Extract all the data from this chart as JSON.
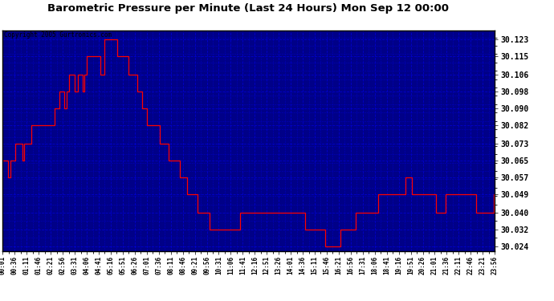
{
  "title": "Barometric Pressure per Minute (Last 24 Hours) Mon Sep 12 00:00",
  "copyright": "Copyright 2005 Gurtronics.com",
  "bg_color": "#000088",
  "line_color": "#ff0000",
  "grid_color": "#0000cc",
  "outer_bg": "#ffffff",
  "y_ticks": [
    30.024,
    30.032,
    30.04,
    30.049,
    30.057,
    30.065,
    30.073,
    30.082,
    30.09,
    30.098,
    30.106,
    30.115,
    30.123
  ],
  "y_min": 30.0215,
  "y_max": 30.1275,
  "x_labels": [
    "00:01",
    "00:36",
    "01:11",
    "01:46",
    "02:21",
    "02:56",
    "03:31",
    "04:06",
    "04:41",
    "05:16",
    "05:51",
    "06:26",
    "07:01",
    "07:36",
    "08:11",
    "08:46",
    "09:21",
    "09:56",
    "10:31",
    "11:06",
    "11:41",
    "12:16",
    "12:51",
    "13:26",
    "14:01",
    "14:36",
    "15:11",
    "15:46",
    "16:21",
    "16:56",
    "17:31",
    "18:06",
    "18:41",
    "19:16",
    "19:51",
    "20:26",
    "21:01",
    "21:36",
    "22:11",
    "22:46",
    "23:21",
    "23:56"
  ],
  "pressure_data": [
    30.065,
    30.065,
    30.065,
    30.065,
    30.057,
    30.057,
    30.065,
    30.065,
    30.065,
    30.065,
    30.073,
    30.073,
    30.073,
    30.073,
    30.073,
    30.073,
    30.065,
    30.073,
    30.073,
    30.073,
    30.073,
    30.073,
    30.073,
    30.082,
    30.082,
    30.082,
    30.082,
    30.082,
    30.082,
    30.082,
    30.082,
    30.082,
    30.082,
    30.082,
    30.082,
    30.082,
    30.082,
    30.082,
    30.082,
    30.082,
    30.082,
    30.09,
    30.09,
    30.09,
    30.09,
    30.098,
    30.098,
    30.098,
    30.098,
    30.09,
    30.09,
    30.098,
    30.098,
    30.106,
    30.106,
    30.106,
    30.106,
    30.098,
    30.098,
    30.098,
    30.106,
    30.106,
    30.106,
    30.106,
    30.098,
    30.106,
    30.106,
    30.115,
    30.115,
    30.115,
    30.115,
    30.115,
    30.115,
    30.115,
    30.115,
    30.115,
    30.115,
    30.115,
    30.106,
    30.106,
    30.106,
    30.123,
    30.123,
    30.123,
    30.123,
    30.123,
    30.123,
    30.123,
    30.123,
    30.123,
    30.123,
    30.115,
    30.115,
    30.115,
    30.115,
    30.115,
    30.115,
    30.115,
    30.115,
    30.115,
    30.106,
    30.106,
    30.106,
    30.106,
    30.106,
    30.106,
    30.106,
    30.098,
    30.098,
    30.098,
    30.098,
    30.09,
    30.09,
    30.09,
    30.09,
    30.082,
    30.082,
    30.082,
    30.082,
    30.082,
    30.082,
    30.082,
    30.082,
    30.082,
    30.082,
    30.073,
    30.073,
    30.073,
    30.073,
    30.073,
    30.073,
    30.073,
    30.065,
    30.065,
    30.065,
    30.065,
    30.065,
    30.065,
    30.065,
    30.065,
    30.065,
    30.057,
    30.057,
    30.057,
    30.057,
    30.057,
    30.057,
    30.049,
    30.049,
    30.049,
    30.049,
    30.049,
    30.049,
    30.049,
    30.049,
    30.04,
    30.04,
    30.04,
    30.04,
    30.04,
    30.04,
    30.04,
    30.04,
    30.04,
    30.04,
    30.032,
    30.032,
    30.032,
    30.032,
    30.032,
    30.032,
    30.032,
    30.032,
    30.032,
    30.032,
    30.032,
    30.032,
    30.032,
    30.032,
    30.032,
    30.032,
    30.032,
    30.032,
    30.032,
    30.032,
    30.032,
    30.032,
    30.032,
    30.032,
    30.04,
    30.04,
    30.04,
    30.04,
    30.04,
    30.04,
    30.04,
    30.04,
    30.04,
    30.04,
    30.04,
    30.04,
    30.04,
    30.04,
    30.04,
    30.04,
    30.04,
    30.04,
    30.04,
    30.04,
    30.04,
    30.04,
    30.04,
    30.04,
    30.04,
    30.04,
    30.04,
    30.04,
    30.04,
    30.04,
    30.04,
    30.04,
    30.04,
    30.04,
    30.04,
    30.04,
    30.04,
    30.04,
    30.04,
    30.04,
    30.04,
    30.04,
    30.04,
    30.04,
    30.04,
    30.04,
    30.04,
    30.04,
    30.04,
    30.04,
    30.04,
    30.04,
    30.032,
    30.032,
    30.032,
    30.032,
    30.032,
    30.032,
    30.032,
    30.032,
    30.032,
    30.032,
    30.032,
    30.032,
    30.032,
    30.032,
    30.032,
    30.032,
    30.024,
    30.024,
    30.024,
    30.024,
    30.024,
    30.024,
    30.024,
    30.024,
    30.024,
    30.024,
    30.024,
    30.024,
    30.032,
    30.032,
    30.032,
    30.032,
    30.032,
    30.032,
    30.032,
    30.032,
    30.032,
    30.032,
    30.032,
    30.032,
    30.04,
    30.04,
    30.04,
    30.04,
    30.04,
    30.04,
    30.04,
    30.04,
    30.04,
    30.04,
    30.04,
    30.04,
    30.04,
    30.04,
    30.04,
    30.04,
    30.04,
    30.04,
    30.049,
    30.049,
    30.049,
    30.049,
    30.049,
    30.049,
    30.049,
    30.049,
    30.049,
    30.049,
    30.049,
    30.049,
    30.049,
    30.049,
    30.049,
    30.049,
    30.049,
    30.049,
    30.049,
    30.049,
    30.049,
    30.049,
    30.057,
    30.057,
    30.057,
    30.057,
    30.057,
    30.049,
    30.049,
    30.049,
    30.049,
    30.049,
    30.049,
    30.049,
    30.049,
    30.049,
    30.049,
    30.049,
    30.049,
    30.049,
    30.049,
    30.049,
    30.049,
    30.049,
    30.049,
    30.049,
    30.04,
    30.04,
    30.04,
    30.04,
    30.04,
    30.04,
    30.04,
    30.04,
    30.049,
    30.049,
    30.049,
    30.049,
    30.049,
    30.049,
    30.049,
    30.049,
    30.049,
    30.049,
    30.049,
    30.049,
    30.049,
    30.049,
    30.049,
    30.049,
    30.049,
    30.049,
    30.049,
    30.049,
    30.049,
    30.049,
    30.049,
    30.049,
    30.04,
    30.04,
    30.04,
    30.04,
    30.04,
    30.04,
    30.04,
    30.04,
    30.04,
    30.04,
    30.04,
    30.04,
    30.04,
    30.04,
    30.049,
    30.049
  ]
}
